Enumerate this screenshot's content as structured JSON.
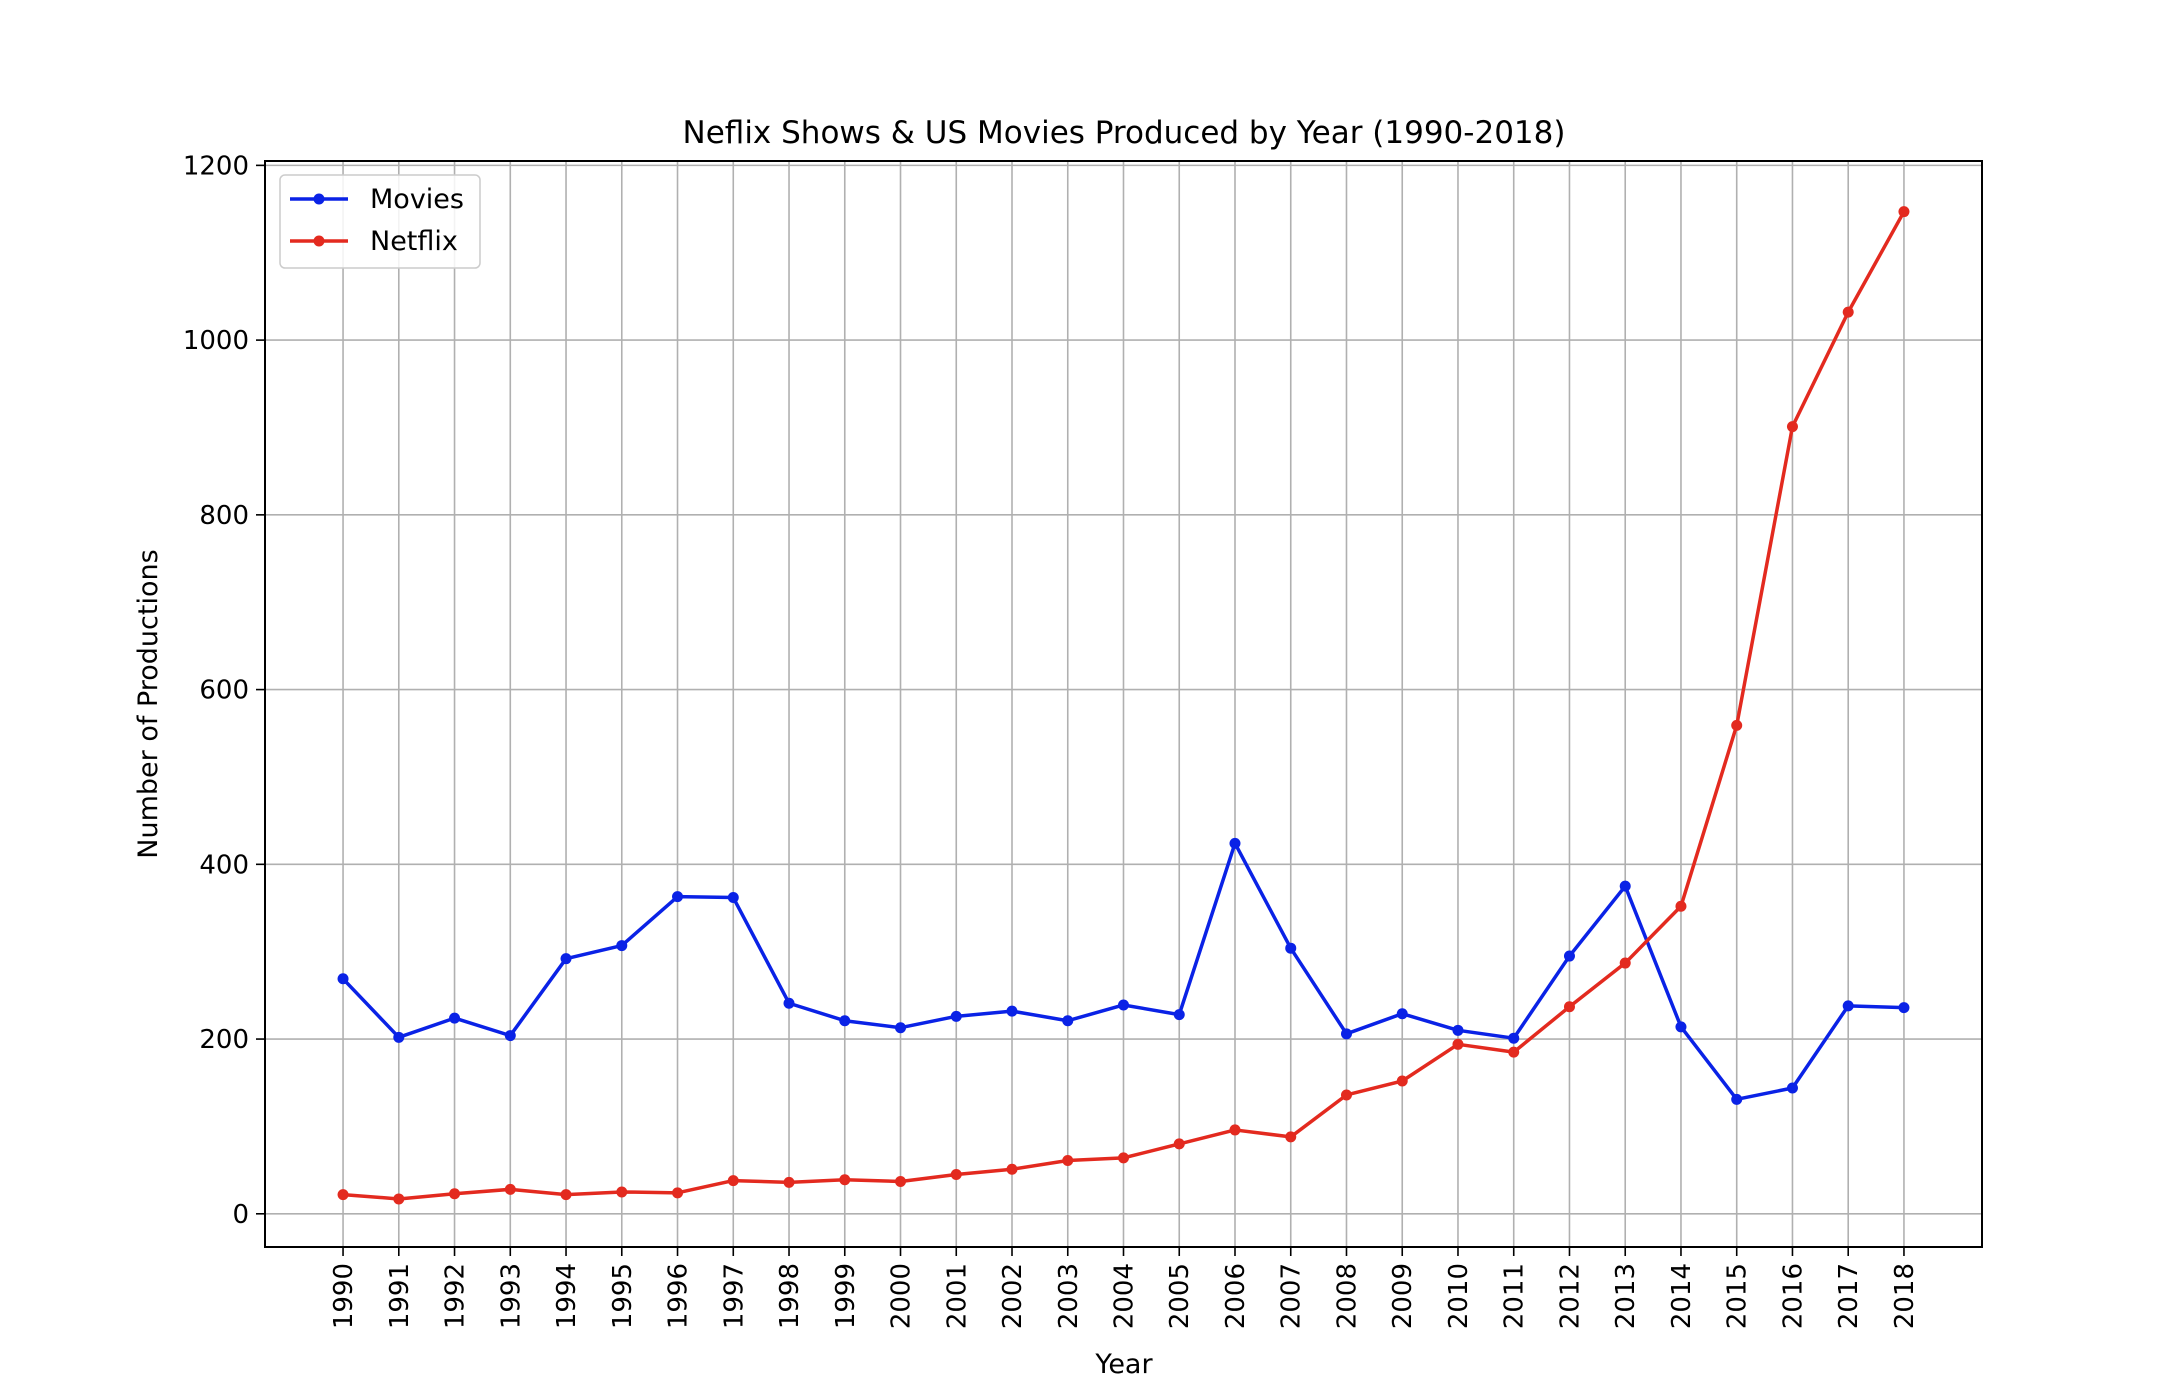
{
  "chart_data": {
    "type": "line",
    "title": "Neflix Shows & US Movies Produced by Year (1990-2018)",
    "xlabel": "Year",
    "ylabel": "Number of Productions",
    "x": [
      1990,
      1991,
      1992,
      1993,
      1994,
      1995,
      1996,
      1997,
      1998,
      1999,
      2000,
      2001,
      2002,
      2003,
      2004,
      2005,
      2006,
      2007,
      2008,
      2009,
      2010,
      2011,
      2012,
      2013,
      2014,
      2015,
      2016,
      2017,
      2018
    ],
    "x_tick_labels": [
      "1990",
      "1991",
      "1992",
      "1993",
      "1994",
      "1995",
      "1996",
      "1997",
      "1998",
      "1999",
      "2000",
      "2001",
      "2002",
      "2003",
      "2004",
      "2005",
      "2006",
      "2007",
      "2008",
      "2009",
      "2010",
      "2011",
      "2012",
      "2013",
      "2014",
      "2015",
      "2016",
      "2017",
      "2018"
    ],
    "y_ticks": [
      0,
      200,
      400,
      600,
      800,
      1000,
      1200
    ],
    "y_tick_labels": [
      "0",
      "200",
      "400",
      "600",
      "800",
      "1000",
      "1200"
    ],
    "ylim": [
      -38,
      1205
    ],
    "xlim": [
      1988.6,
      2019.4
    ],
    "grid": true,
    "legend_position": "upper-left",
    "series": [
      {
        "name": "Movies",
        "color": "#0a22e6",
        "values": [
          269,
          202,
          224,
          204,
          292,
          307,
          363,
          362,
          241,
          221,
          213,
          226,
          232,
          221,
          239,
          228,
          424,
          304,
          206,
          229,
          210,
          201,
          295,
          375,
          214,
          131,
          144,
          238,
          236
        ]
      },
      {
        "name": "Netflix",
        "color": "#e32a1f",
        "values": [
          22,
          17,
          23,
          28,
          22,
          25,
          24,
          38,
          36,
          39,
          37,
          45,
          51,
          61,
          64,
          80,
          96,
          88,
          136,
          152,
          194,
          185,
          237,
          287,
          352,
          559,
          901,
          1032,
          1147
        ]
      }
    ]
  }
}
